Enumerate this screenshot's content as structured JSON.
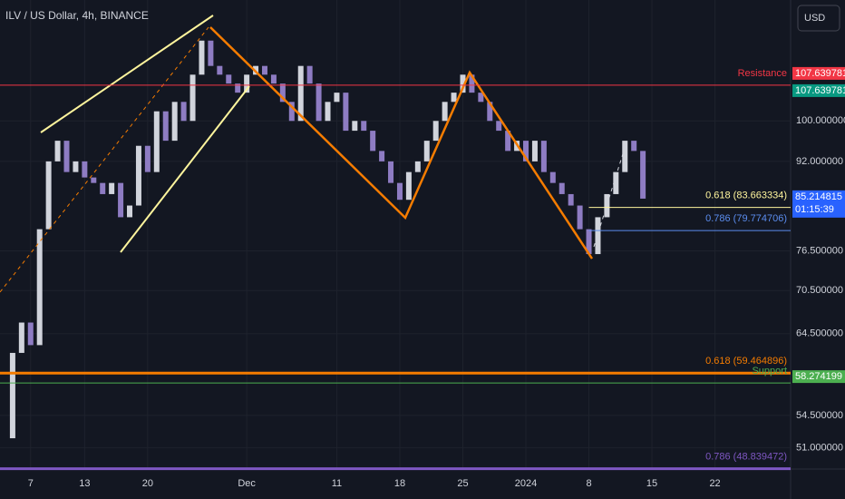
{
  "chart_data": {
    "type": "candlestick",
    "title": "ILV / US Dollar, 4h, BINANCE",
    "currency": "USD",
    "log_scale": true,
    "ylim": [
      48.8,
      128.3
    ],
    "yticks": [
      {
        "value": 100,
        "label": "100.000000"
      },
      {
        "value": 92,
        "label": "92.000000"
      },
      {
        "value": 76.5,
        "label": "76.500000"
      },
      {
        "value": 70.5,
        "label": "70.500000"
      },
      {
        "value": 64.5,
        "label": "64.500000"
      },
      {
        "value": 54.5,
        "label": "54.500000"
      },
      {
        "value": 51,
        "label": "51.000000"
      }
    ],
    "xlim": [
      3.6,
      91.4
    ],
    "xticks": [
      7,
      13,
      20,
      {
        "value": 31,
        "label": "Dec"
      },
      {
        "value": 41,
        "label": "11"
      },
      {
        "value": 48,
        "label": "18"
      },
      {
        "value": 55,
        "label": "25"
      },
      {
        "value": 62,
        "label": "2024"
      },
      {
        "value": 69,
        "label": "8"
      },
      {
        "value": 76,
        "label": "15"
      },
      {
        "value": 83,
        "label": "22"
      }
    ],
    "series": [
      {
        "up_color": "#d1d4dc",
        "down_color": "#8e7cc3",
        "x": [
          4,
          5,
          6,
          7,
          8,
          9,
          10,
          11,
          12,
          13,
          14,
          15,
          16,
          17,
          18,
          19,
          20,
          21,
          22,
          23,
          24,
          25,
          26,
          27,
          28,
          29,
          30,
          31,
          32,
          33,
          34,
          35,
          36,
          37,
          38,
          39,
          40,
          41,
          42,
          43,
          44,
          45,
          46,
          47,
          48,
          49,
          50,
          51,
          52,
          53,
          54,
          55,
          56,
          57,
          58,
          59,
          60,
          61,
          62,
          63,
          64,
          65,
          66,
          67,
          68,
          69,
          70,
          71,
          72,
          73,
          74,
          75
        ],
        "values": [
          52,
          62,
          66,
          63,
          80,
          92,
          96,
          90,
          92,
          89,
          88,
          86,
          88,
          82,
          84,
          95,
          90,
          102,
          96,
          104,
          100,
          110,
          118,
          112,
          110,
          108,
          106,
          110,
          112,
          110,
          108,
          104,
          100,
          112,
          108,
          100,
          104,
          106,
          98,
          100,
          98,
          94,
          92,
          88,
          85,
          90,
          92,
          96,
          100,
          104,
          106,
          110,
          106,
          104,
          100,
          98,
          94,
          96,
          92,
          96,
          90,
          88,
          86,
          84,
          80,
          76,
          82,
          86,
          90,
          96,
          94,
          85.2
        ]
      }
    ],
    "levels": [
      {
        "name": "Resistance",
        "value": 107.639781,
        "color": "#f23645",
        "badges": [
          "#f23645",
          "#089981"
        ]
      },
      {
        "name": "0.618 (83.663334)",
        "value": 83.663334,
        "color": "#fff59d",
        "start": 69
      },
      {
        "name": "0.786 (79.774706)",
        "value": 79.774706,
        "color": "#5b8def",
        "start": 69
      },
      {
        "name": "0.618 (59.464896)",
        "value": 59.464896,
        "color": "#f57c00",
        "width": 3
      },
      {
        "name": "Support",
        "value": 58.274199,
        "color": "#4caf50",
        "badges": [
          "#4caf50"
        ]
      },
      {
        "name": "0.786 (48.839472)",
        "value": 48.839472,
        "color": "#7e57c2",
        "width": 3
      }
    ],
    "current": {
      "value": 85.214815,
      "countdown": "01:15:39",
      "color": "#2962ff"
    }
  }
}
